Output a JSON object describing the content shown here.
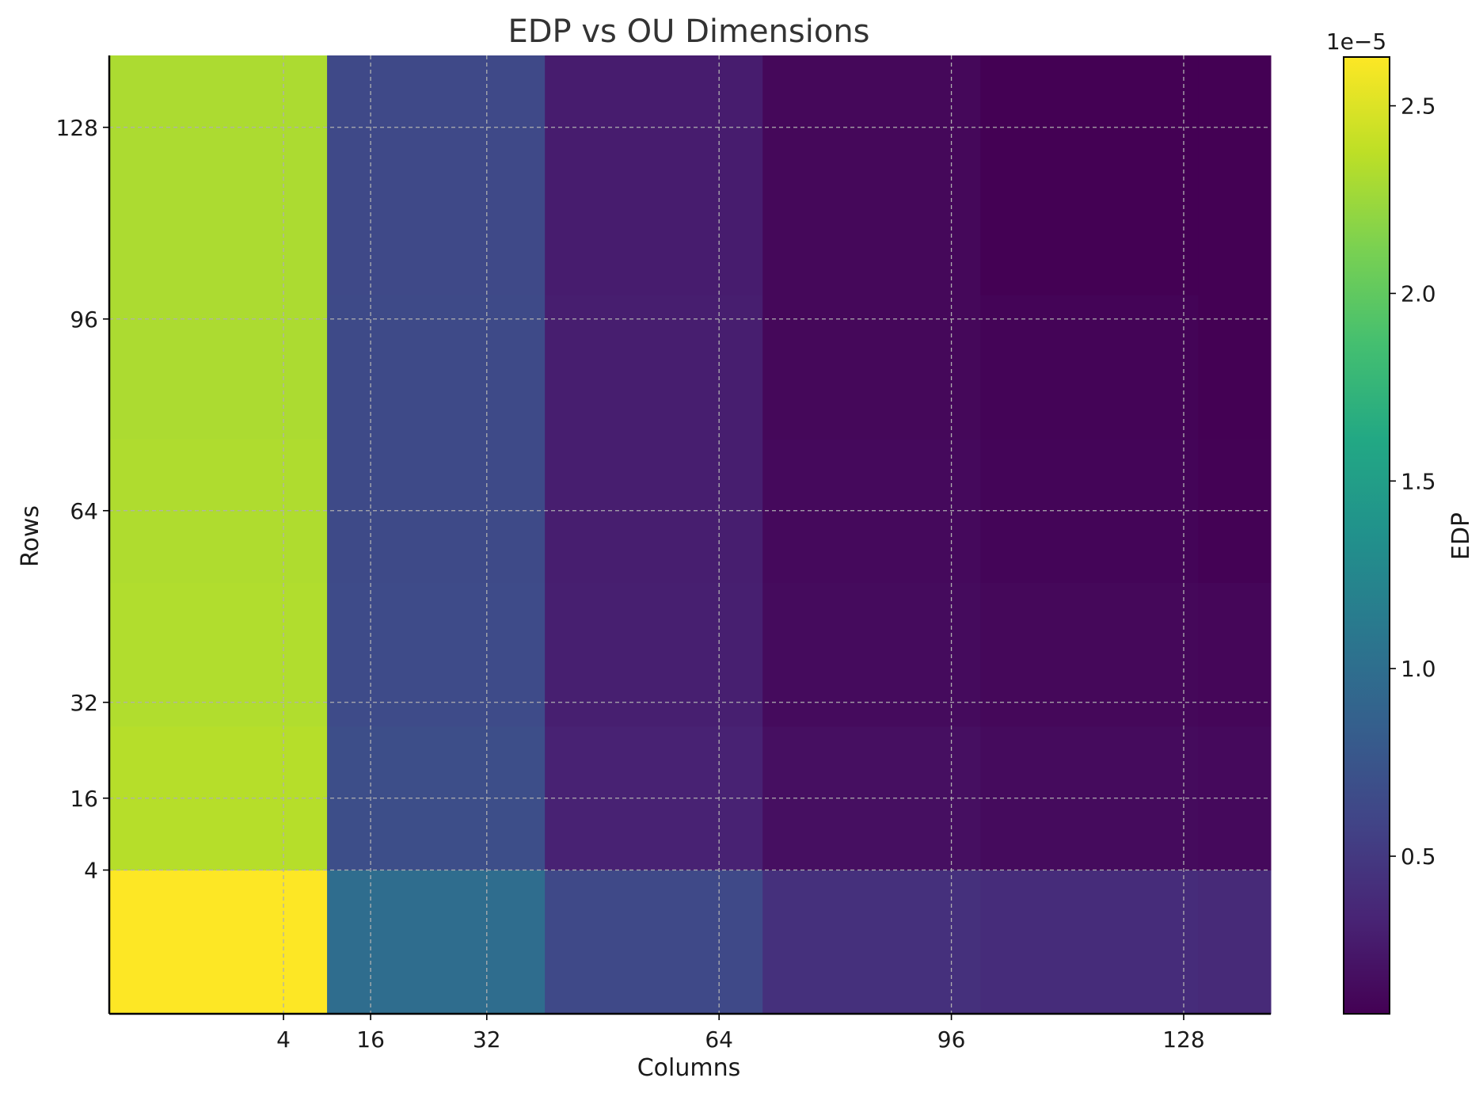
{
  "chart_data": {
    "type": "heatmap",
    "title": "EDP vs OU Dimensions",
    "xlabel": "Columns",
    "ylabel": "Rows",
    "colorbar_label": "EDP",
    "colorbar_offset_text": "1e−5",
    "colormap": "viridis",
    "color_range": [
      0.08,
      2.63
    ],
    "colorbar_ticks": [
      "0.5",
      "1.0",
      "1.5",
      "2.0",
      "2.5"
    ],
    "colorbar_tick_values": [
      0.5,
      1.0,
      1.5,
      2.0,
      2.5
    ],
    "x_ticks": [
      "4",
      "16",
      "32",
      "64",
      "96",
      "128"
    ],
    "y_ticks": [
      "4",
      "16",
      "32",
      "64",
      "96",
      "128"
    ],
    "x_tick_values": [
      4,
      16,
      32,
      64,
      96,
      128
    ],
    "y_tick_values": [
      4,
      16,
      32,
      64,
      96,
      128
    ],
    "x_range": [
      -20,
      140
    ],
    "y_range": [
      -20,
      140
    ],
    "grid": true,
    "cells": [
      {
        "x0": -20,
        "x1": 10,
        "y0": -20,
        "y1": 4,
        "values": [
          2.63,
          0.99,
          0.64,
          0.43,
          0.4,
          0.38
        ]
      },
      {
        "x0": -20,
        "x1": 10,
        "y0": 4,
        "y1": 28,
        "values": [
          2.35,
          0.68,
          0.32,
          0.18,
          0.15,
          0.14
        ]
      },
      {
        "x0": -20,
        "x1": 10,
        "y0": 28,
        "y1": 52,
        "values": [
          2.33,
          0.66,
          0.3,
          0.15,
          0.13,
          0.12
        ]
      },
      {
        "x0": -20,
        "x1": 10,
        "y0": 52,
        "y1": 76,
        "values": [
          2.32,
          0.65,
          0.29,
          0.14,
          0.11,
          0.09
        ]
      },
      {
        "x0": -20,
        "x1": 10,
        "y0": 76,
        "y1": 100,
        "values": [
          2.31,
          0.65,
          0.29,
          0.13,
          0.1,
          0.08
        ]
      },
      {
        "x0": -20,
        "x1": 10,
        "y0": 100,
        "y1": 140,
        "values": [
          2.31,
          0.64,
          0.28,
          0.13,
          0.08,
          0.08
        ]
      }
    ],
    "column_edges": [
      -20,
      10,
      40,
      70,
      100,
      130,
      140
    ],
    "row_edges": [
      -20,
      4,
      28,
      52,
      76,
      100,
      140
    ],
    "matrix": [
      [
        2.63,
        0.99,
        0.64,
        0.43,
        0.4,
        0.38
      ],
      [
        2.35,
        0.68,
        0.32,
        0.18,
        0.15,
        0.14
      ],
      [
        2.33,
        0.66,
        0.3,
        0.15,
        0.13,
        0.12
      ],
      [
        2.32,
        0.65,
        0.29,
        0.14,
        0.11,
        0.09
      ],
      [
        2.31,
        0.65,
        0.29,
        0.13,
        0.1,
        0.08
      ],
      [
        2.31,
        0.64,
        0.28,
        0.13,
        0.08,
        0.08
      ]
    ]
  }
}
